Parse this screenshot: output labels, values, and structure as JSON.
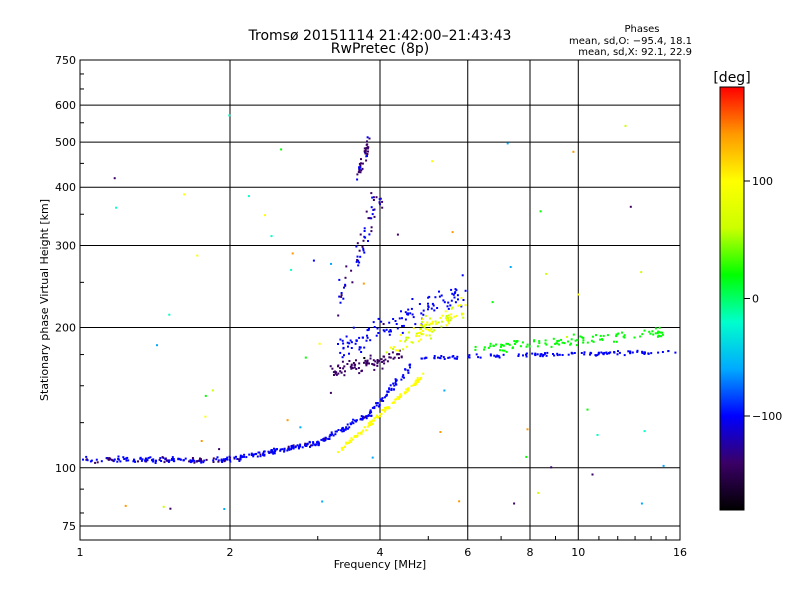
{
  "header": {
    "title_line1": "Tromsø 20151114 21:42:00–21:43:43",
    "title_line2": "RwPretec (8p)",
    "phases_label": "Phases",
    "phases_o": "mean, sd,O: −95.4, 18.1",
    "phases_x": "mean, sd,X:  92.1, 22.9"
  },
  "chart_data": {
    "type": "scatter",
    "xlabel": "Frequency [MHz]",
    "ylabel": "Stationary phase Virtual Height [km]",
    "xscale": "log",
    "yscale": "log",
    "xlim": [
      1,
      16
    ],
    "ylim": [
      70,
      750
    ],
    "xticks": [
      1,
      2,
      4,
      6,
      8,
      10,
      16
    ],
    "xtick_labels": [
      "1",
      "2",
      "4",
      "6",
      "8",
      "10",
      "16"
    ],
    "yticks": [
      75,
      100,
      200,
      300,
      400,
      500,
      600,
      750
    ],
    "ytick_labels": [
      "75",
      "100",
      "200",
      "300",
      "400",
      "500",
      "600",
      "750"
    ],
    "grid": true,
    "colorbar": {
      "label": "[deg]",
      "min": -180,
      "max": 180,
      "ticks": [
        -100,
        0,
        100
      ],
      "tick_labels": [
        "−100",
        "0",
        "100"
      ],
      "colors": [
        "#000000",
        "#3a0066",
        "#0000ff",
        "#00aaff",
        "#00ffcc",
        "#00ff00",
        "#ccff00",
        "#ffff00",
        "#ff9900",
        "#ff0000"
      ]
    },
    "trace_groups": [
      {
        "x": [
          1.0,
          2.0
        ],
        "y": [
          104,
          104
        ],
        "phase": -115,
        "scatter": 0.02,
        "count": 140
      },
      {
        "x": [
          2.0,
          3.0
        ],
        "y": [
          104,
          113
        ],
        "phase": -110,
        "scatter": 0.02,
        "count": 110
      },
      {
        "x": [
          3.0,
          3.8
        ],
        "y": [
          113,
          130
        ],
        "phase": -108,
        "scatter": 0.02,
        "count": 70
      },
      {
        "x": [
          3.8,
          4.6
        ],
        "y": [
          130,
          165
        ],
        "phase": -105,
        "scatter": 0.03,
        "count": 60
      },
      {
        "x": [
          3.3,
          4.9
        ],
        "y": [
          108,
          158
        ],
        "phase": 100,
        "scatter": 0.02,
        "count": 110
      },
      {
        "x": [
          3.2,
          4.4
        ],
        "y": [
          160,
          175
        ],
        "phase": -140,
        "scatter": 0.05,
        "count": 90
      },
      {
        "x": [
          3.3,
          5.9
        ],
        "y": [
          180,
          240
        ],
        "phase": -100,
        "scatter": 0.1,
        "count": 120
      },
      {
        "x": [
          4.2,
          5.9
        ],
        "y": [
          180,
          220
        ],
        "phase": 80,
        "scatter": 0.08,
        "count": 90
      },
      {
        "x": [
          3.3,
          4.0
        ],
        "y": [
          230,
          380
        ],
        "phase": -120,
        "scatter": 0.1,
        "count": 60
      },
      {
        "x": [
          3.6,
          3.8
        ],
        "y": [
          420,
          500
        ],
        "phase": -125,
        "scatter": 0.04,
        "count": 40
      },
      {
        "x": [
          4.8,
          16.0
        ],
        "y": [
          172,
          178
        ],
        "phase": -100,
        "scatter": 0.015,
        "count": 120
      },
      {
        "x": [
          6.1,
          15.0
        ],
        "y": [
          180,
          195
        ],
        "phase": 20,
        "scatter": 0.04,
        "count": 110
      },
      {
        "x": [
          1.1,
          15.0
        ],
        "y": [
          80,
          620
        ],
        "phase": 60,
        "scatter": 0.0,
        "count": 60
      }
    ]
  }
}
